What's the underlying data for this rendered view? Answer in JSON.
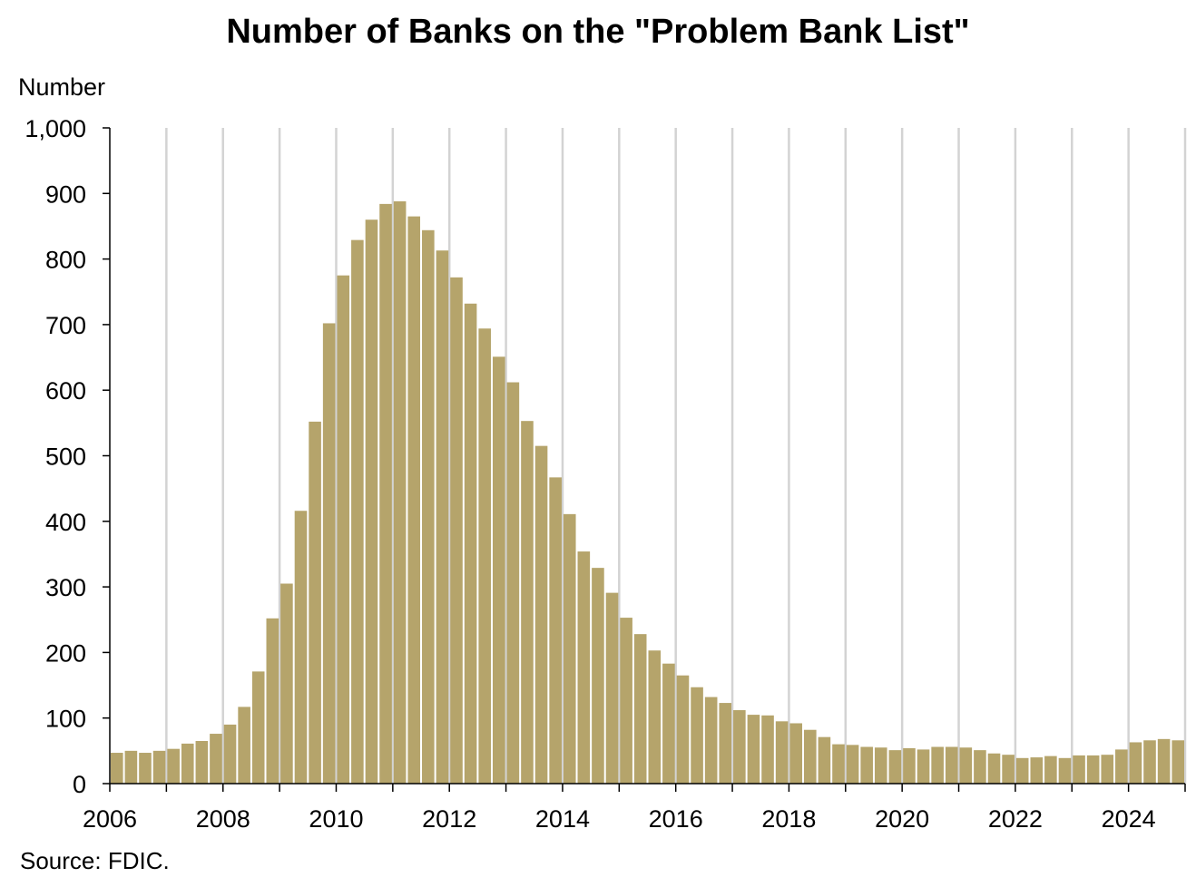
{
  "chart_data": {
    "type": "bar",
    "title": "Number of Banks on the \"Problem Bank List\"",
    "ylabel": "Number",
    "xlabel": "",
    "source": "Source: FDIC.",
    "ylim": [
      0,
      1000
    ],
    "yticks": [
      0,
      100,
      200,
      300,
      400,
      500,
      600,
      700,
      800,
      900,
      1000
    ],
    "ytick_labels": [
      "0",
      "100",
      "200",
      "300",
      "400",
      "500",
      "600",
      "700",
      "800",
      "900",
      "1,000"
    ],
    "xlim": [
      2006,
      2025
    ],
    "xtick_years": [
      2006,
      2008,
      2010,
      2012,
      2014,
      2016,
      2018,
      2020,
      2022,
      2024
    ],
    "grid": "vertical yearly gridlines",
    "bar_color": "#B5A46B",
    "grid_color": "#D3D3D3",
    "categories": [
      "2006Q1",
      "2006Q2",
      "2006Q3",
      "2006Q4",
      "2007Q1",
      "2007Q2",
      "2007Q3",
      "2007Q4",
      "2008Q1",
      "2008Q2",
      "2008Q3",
      "2008Q4",
      "2009Q1",
      "2009Q2",
      "2009Q3",
      "2009Q4",
      "2010Q1",
      "2010Q2",
      "2010Q3",
      "2010Q4",
      "2011Q1",
      "2011Q2",
      "2011Q3",
      "2011Q4",
      "2012Q1",
      "2012Q2",
      "2012Q3",
      "2012Q4",
      "2013Q1",
      "2013Q2",
      "2013Q3",
      "2013Q4",
      "2014Q1",
      "2014Q2",
      "2014Q3",
      "2014Q4",
      "2015Q1",
      "2015Q2",
      "2015Q3",
      "2015Q4",
      "2016Q1",
      "2016Q2",
      "2016Q3",
      "2016Q4",
      "2017Q1",
      "2017Q2",
      "2017Q3",
      "2017Q4",
      "2018Q1",
      "2018Q2",
      "2018Q3",
      "2018Q4",
      "2019Q1",
      "2019Q2",
      "2019Q3",
      "2019Q4",
      "2020Q1",
      "2020Q2",
      "2020Q3",
      "2020Q4",
      "2021Q1",
      "2021Q2",
      "2021Q3",
      "2021Q4",
      "2022Q1",
      "2022Q2",
      "2022Q3",
      "2022Q4",
      "2023Q1",
      "2023Q2",
      "2023Q3",
      "2023Q4",
      "2024Q1",
      "2024Q2",
      "2024Q3",
      "2024Q4"
    ],
    "values": [
      47,
      50,
      47,
      50,
      53,
      61,
      65,
      76,
      90,
      117,
      171,
      252,
      305,
      416,
      552,
      702,
      775,
      829,
      860,
      884,
      888,
      865,
      844,
      813,
      772,
      732,
      694,
      651,
      612,
      553,
      515,
      467,
      411,
      354,
      329,
      291,
      253,
      228,
      203,
      183,
      165,
      147,
      132,
      123,
      112,
      105,
      104,
      95,
      92,
      82,
      71,
      60,
      59,
      56,
      55,
      51,
      54,
      52,
      56,
      56,
      55,
      51,
      46,
      44,
      39,
      40,
      42,
      39,
      43,
      43,
      44,
      52,
      63,
      66,
      68,
      66
    ]
  }
}
